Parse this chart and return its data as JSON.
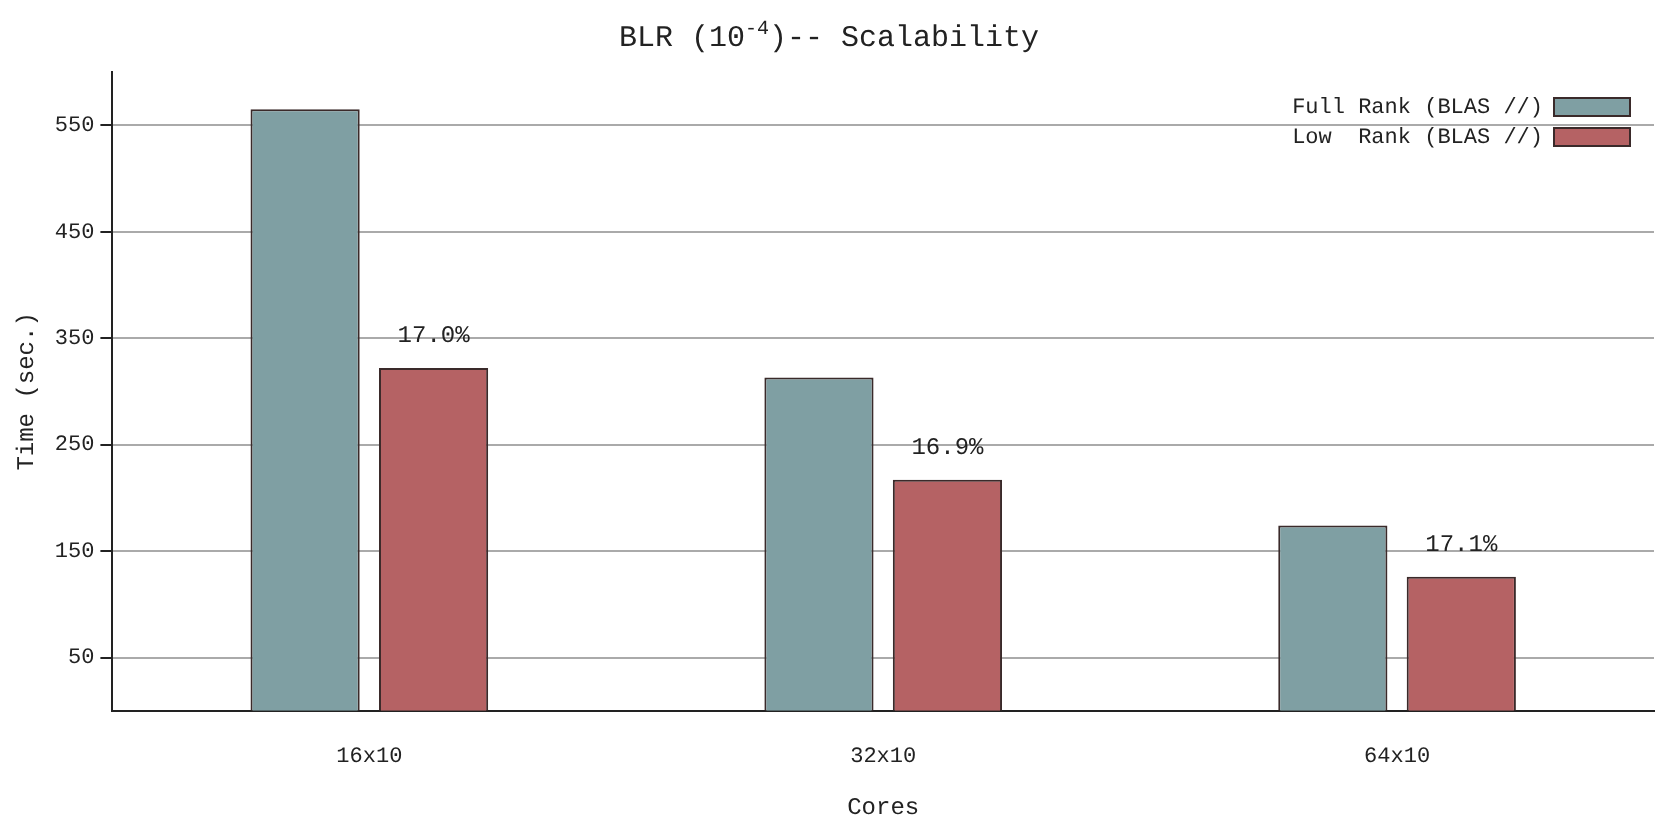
{
  "chart_data": {
    "type": "bar",
    "title": "BLR (10$^{-4}$)-- Scalability",
    "xlabel": "Cores",
    "ylabel": "Time (sec.)",
    "categories": [
      "16x10",
      "32x10",
      "64x10"
    ],
    "series": [
      {
        "name": "Full Rank (BLAS //)",
        "color": "#7f9fa3",
        "values": [
          565,
          313,
          174
        ]
      },
      {
        "name": "Low  Rank (BLAS //)",
        "color": "#b56264",
        "values": [
          322,
          217,
          126
        ]
      }
    ],
    "annotations": [
      "17.0%",
      "16.9%",
      "17.1%"
    ],
    "ylim": [
      0,
      600
    ],
    "yticks": [
      50,
      150,
      250,
      350,
      450,
      550
    ],
    "grid": "y",
    "legend": "top right"
  }
}
